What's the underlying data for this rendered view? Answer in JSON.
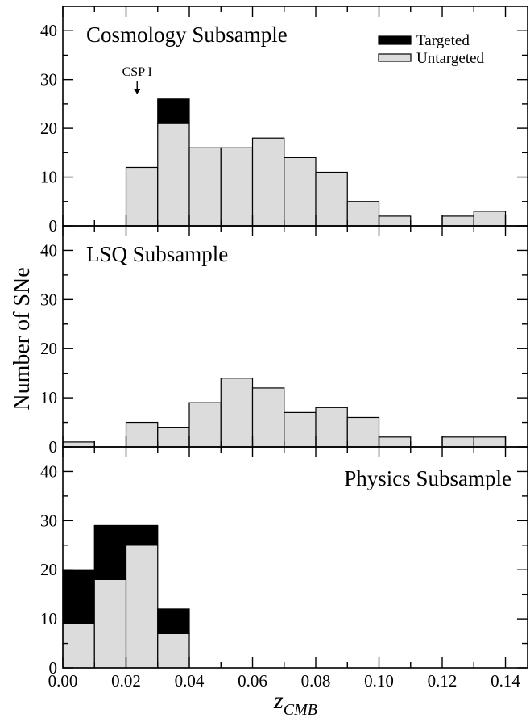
{
  "chart_data": {
    "type": "bar",
    "xlabel": "z",
    "xlabel_subscript": "CMB",
    "ylabel": "Number of SNe",
    "xlim": [
      0,
      0.147
    ],
    "ylim": [
      0,
      45
    ],
    "bin_width": 0.01,
    "x_ticks": [
      {
        "value": 0.0,
        "label": "0.00"
      },
      {
        "value": 0.02,
        "label": "0.02"
      },
      {
        "value": 0.04,
        "label": "0.04"
      },
      {
        "value": 0.06,
        "label": "0.06"
      },
      {
        "value": 0.08,
        "label": "0.08"
      },
      {
        "value": 0.1,
        "label": "0.10"
      },
      {
        "value": 0.12,
        "label": "0.12"
      },
      {
        "value": 0.14,
        "label": "0.14"
      }
    ],
    "y_ticks": [
      {
        "value": 0,
        "label": "0"
      },
      {
        "value": 10,
        "label": "10"
      },
      {
        "value": 20,
        "label": "20"
      },
      {
        "value": 30,
        "label": "30"
      },
      {
        "value": 40,
        "label": "40"
      }
    ],
    "legend": {
      "placement": "top-right",
      "entries": [
        {
          "name": "Targeted",
          "color": "#000000"
        },
        {
          "name": "Untargeted",
          "color": "#dcdcdc"
        }
      ]
    },
    "colors": {
      "targeted": "#000000",
      "untargeted": "#dcdcdc",
      "outline": "#000000"
    },
    "panels": [
      {
        "title": "Cosmology Subsample",
        "title_align": "left",
        "annotation": {
          "text": "CSP I",
          "x": 0.0235
        },
        "bins": [
          {
            "x0": 0.02,
            "untargeted": 12,
            "targeted": 0
          },
          {
            "x0": 0.03,
            "untargeted": 21,
            "targeted": 5
          },
          {
            "x0": 0.04,
            "untargeted": 16,
            "targeted": 0
          },
          {
            "x0": 0.05,
            "untargeted": 16,
            "targeted": 0
          },
          {
            "x0": 0.06,
            "untargeted": 18,
            "targeted": 0
          },
          {
            "x0": 0.07,
            "untargeted": 14,
            "targeted": 0
          },
          {
            "x0": 0.08,
            "untargeted": 11,
            "targeted": 0
          },
          {
            "x0": 0.09,
            "untargeted": 5,
            "targeted": 0
          },
          {
            "x0": 0.1,
            "untargeted": 2,
            "targeted": 0
          },
          {
            "x0": 0.12,
            "untargeted": 2,
            "targeted": 0
          },
          {
            "x0": 0.13,
            "untargeted": 3,
            "targeted": 0
          }
        ]
      },
      {
        "title": "LSQ Subsample",
        "title_align": "left",
        "bins": [
          {
            "x0": 0.0,
            "untargeted": 1,
            "targeted": 0
          },
          {
            "x0": 0.02,
            "untargeted": 5,
            "targeted": 0
          },
          {
            "x0": 0.03,
            "untargeted": 4,
            "targeted": 0
          },
          {
            "x0": 0.04,
            "untargeted": 9,
            "targeted": 0
          },
          {
            "x0": 0.05,
            "untargeted": 14,
            "targeted": 0
          },
          {
            "x0": 0.06,
            "untargeted": 12,
            "targeted": 0
          },
          {
            "x0": 0.07,
            "untargeted": 7,
            "targeted": 0
          },
          {
            "x0": 0.08,
            "untargeted": 8,
            "targeted": 0
          },
          {
            "x0": 0.09,
            "untargeted": 6,
            "targeted": 0
          },
          {
            "x0": 0.1,
            "untargeted": 2,
            "targeted": 0
          },
          {
            "x0": 0.12,
            "untargeted": 2,
            "targeted": 0
          },
          {
            "x0": 0.13,
            "untargeted": 2,
            "targeted": 0
          }
        ]
      },
      {
        "title": "Physics Subsample",
        "title_align": "right",
        "bins": [
          {
            "x0": 0.0,
            "untargeted": 9,
            "targeted": 11
          },
          {
            "x0": 0.01,
            "untargeted": 18,
            "targeted": 11
          },
          {
            "x0": 0.02,
            "untargeted": 25,
            "targeted": 4
          },
          {
            "x0": 0.03,
            "untargeted": 7,
            "targeted": 5
          }
        ]
      }
    ]
  }
}
